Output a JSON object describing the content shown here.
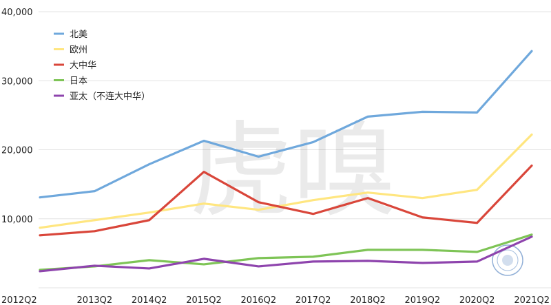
{
  "chart_data": {
    "type": "line",
    "title": "",
    "xlabel": "",
    "ylabel": "",
    "x": [
      "2012Q2",
      "2013Q2",
      "2014Q2",
      "2015Q2",
      "2016Q2",
      "2017Q2",
      "2018Q2",
      "2019Q2",
      "2020Q2",
      "2021Q2"
    ],
    "y_ticks": [
      "10,000",
      "20,000",
      "30,000",
      "40,000"
    ],
    "ylim": [
      0,
      40000
    ],
    "grid": true,
    "legend_position": "top-left",
    "series": [
      {
        "name": "北美",
        "color": "#6fa8dc",
        "values": [
          13100,
          14000,
          17900,
          21300,
          19000,
          21100,
          24800,
          25500,
          25400,
          34300
        ]
      },
      {
        "name": "欧州",
        "color": "#ffe680",
        "values": [
          8700,
          9800,
          10900,
          12200,
          11300,
          12700,
          13800,
          13000,
          14200,
          22200
        ]
      },
      {
        "name": "大中华",
        "color": "#d9463a",
        "values": [
          7600,
          8200,
          9800,
          16800,
          12400,
          10700,
          13000,
          10200,
          9400,
          17700
        ]
      },
      {
        "name": "日本",
        "color": "#7ec456",
        "values": [
          2600,
          3100,
          4000,
          3400,
          4300,
          4500,
          5500,
          5500,
          5200,
          7700
        ]
      },
      {
        "name": "亚太（不连大中华）",
        "color": "#8e44ad",
        "values": [
          2400,
          3200,
          2800,
          4200,
          3100,
          3800,
          3900,
          3600,
          3800,
          7400
        ]
      }
    ]
  },
  "watermark": {
    "text": "虎嗅"
  }
}
